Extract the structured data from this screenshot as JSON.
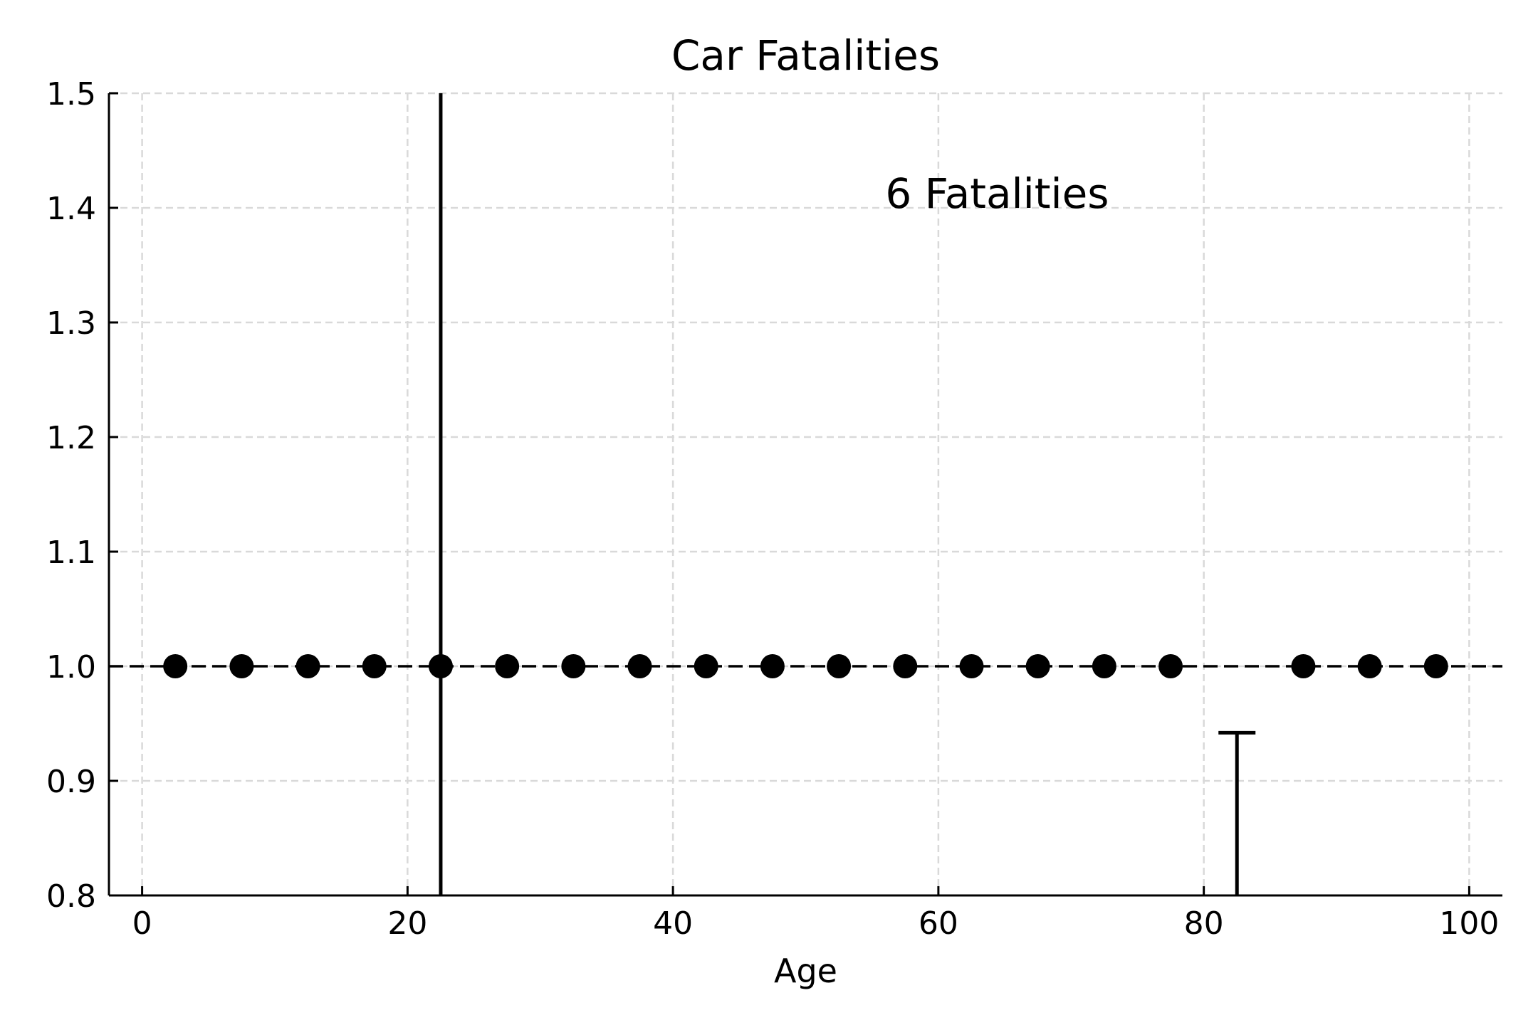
{
  "chart_data": {
    "type": "scatter",
    "title": "Car Fatalities",
    "xlabel": "Age",
    "ylabel": "",
    "xlim": [
      -2.5,
      102.5
    ],
    "ylim": [
      0.8,
      1.5
    ],
    "xticks": [
      0,
      20,
      40,
      60,
      80,
      100
    ],
    "yticks": [
      0.8,
      0.9,
      1.0,
      1.1,
      1.2,
      1.3,
      1.4,
      1.5
    ],
    "xtick_labels": [
      "0",
      "20",
      "40",
      "60",
      "80",
      "100"
    ],
    "ytick_labels": [
      "0.8",
      "0.9",
      "1.0",
      "1.1",
      "1.2",
      "1.3",
      "1.4",
      "1.5"
    ],
    "grid": true,
    "points": {
      "x": [
        2.5,
        7.5,
        12.5,
        17.5,
        22.5,
        27.5,
        32.5,
        37.5,
        42.5,
        47.5,
        52.5,
        57.5,
        62.5,
        67.5,
        72.5,
        77.5,
        87.5,
        92.5,
        97.5
      ],
      "y": [
        1,
        1,
        1,
        1,
        1,
        1,
        1,
        1,
        1,
        1,
        1,
        1,
        1,
        1,
        1,
        1,
        1,
        1,
        1
      ]
    },
    "reference_line": {
      "y": 1.0,
      "style": "dashed",
      "color": "#000000"
    },
    "vertical_lines": [
      {
        "x": 22.5,
        "y_from": 0.8,
        "y_to": 1.5
      },
      {
        "x": 82.5,
        "y_from": 0.8,
        "y_to": 0.942,
        "cap": true
      }
    ],
    "annotations": [
      {
        "text": "6 Fatalities",
        "x": 56,
        "y": 1.4
      }
    ],
    "colors": {
      "marks": "#000000",
      "grid": "#d9d9d9"
    }
  }
}
